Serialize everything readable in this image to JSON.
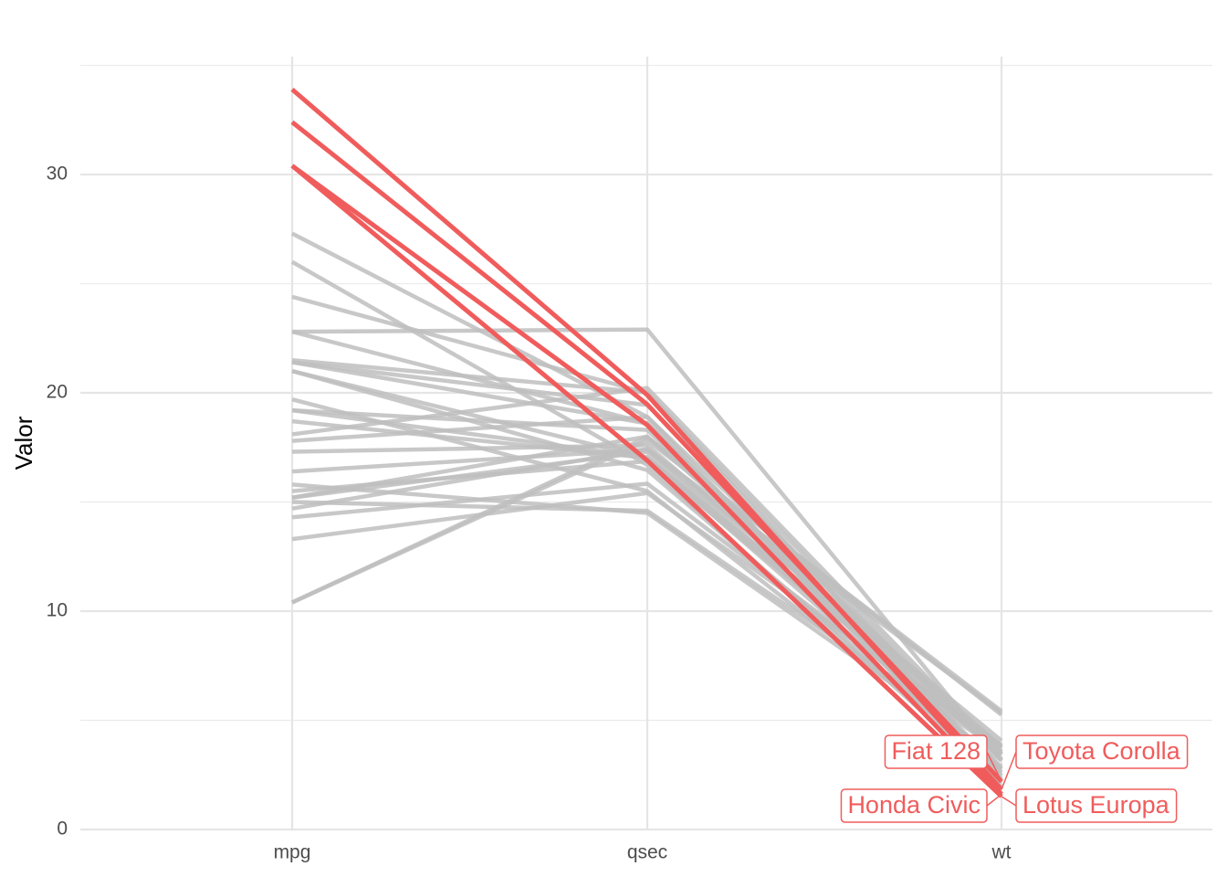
{
  "chart_data": {
    "type": "line",
    "y_label": "Valor",
    "categories": [
      "mpg",
      "qsec",
      "wt"
    ],
    "ylim": [
      0,
      35.4
    ],
    "yticks": [
      0,
      10,
      20,
      30
    ],
    "minor_yticks": [
      5,
      15,
      25,
      35
    ],
    "grid": true,
    "series": [
      {
        "color": "#bebebe",
        "values": [
          21.0,
          16.46,
          2.62
        ]
      },
      {
        "color": "#bebebe",
        "values": [
          21.0,
          17.02,
          2.875
        ]
      },
      {
        "color": "#bebebe",
        "values": [
          22.8,
          18.61,
          2.32
        ]
      },
      {
        "color": "#bebebe",
        "values": [
          21.4,
          19.44,
          3.215
        ]
      },
      {
        "color": "#bebebe",
        "values": [
          18.7,
          17.02,
          3.44
        ]
      },
      {
        "color": "#bebebe",
        "values": [
          18.1,
          20.22,
          3.46
        ]
      },
      {
        "color": "#bebebe",
        "values": [
          14.3,
          15.84,
          3.57
        ]
      },
      {
        "color": "#bebebe",
        "values": [
          24.4,
          20.0,
          3.19
        ]
      },
      {
        "color": "#bebebe",
        "values": [
          22.8,
          22.9,
          3.15
        ]
      },
      {
        "color": "#bebebe",
        "values": [
          19.2,
          18.3,
          3.44
        ]
      },
      {
        "color": "#bebebe",
        "values": [
          17.8,
          18.9,
          3.44
        ]
      },
      {
        "color": "#bebebe",
        "values": [
          16.4,
          17.4,
          4.07
        ]
      },
      {
        "color": "#bebebe",
        "values": [
          17.3,
          17.6,
          3.73
        ]
      },
      {
        "color": "#bebebe",
        "values": [
          15.2,
          18.0,
          3.78
        ]
      },
      {
        "color": "#bebebe",
        "values": [
          10.4,
          17.98,
          5.25
        ]
      },
      {
        "color": "#bebebe",
        "values": [
          10.4,
          17.82,
          5.424
        ]
      },
      {
        "color": "#bebebe",
        "values": [
          14.7,
          17.42,
          5.345
        ]
      },
      {
        "name": "Fiat 128",
        "color": "#f05c5c",
        "values": [
          32.4,
          19.47,
          2.2
        ]
      },
      {
        "name": "Honda Civic",
        "color": "#f05c5c",
        "values": [
          30.4,
          18.52,
          1.615
        ]
      },
      {
        "name": "Toyota Corolla",
        "color": "#f05c5c",
        "values": [
          33.9,
          19.9,
          1.835
        ]
      },
      {
        "color": "#bebebe",
        "values": [
          21.5,
          20.01,
          2.465
        ]
      },
      {
        "color": "#bebebe",
        "values": [
          15.5,
          16.87,
          3.52
        ]
      },
      {
        "color": "#bebebe",
        "values": [
          15.2,
          17.3,
          3.435
        ]
      },
      {
        "color": "#bebebe",
        "values": [
          13.3,
          15.41,
          3.84
        ]
      },
      {
        "color": "#bebebe",
        "values": [
          19.2,
          17.05,
          3.845
        ]
      },
      {
        "color": "#bebebe",
        "values": [
          27.3,
          18.9,
          1.935
        ]
      },
      {
        "color": "#bebebe",
        "values": [
          26.0,
          16.7,
          2.14
        ]
      },
      {
        "name": "Lotus Europa",
        "color": "#f05c5c",
        "values": [
          30.4,
          16.9,
          1.513
        ]
      },
      {
        "color": "#bebebe",
        "values": [
          15.8,
          14.5,
          3.17
        ]
      },
      {
        "color": "#bebebe",
        "values": [
          19.7,
          15.5,
          2.77
        ]
      },
      {
        "color": "#bebebe",
        "values": [
          15.0,
          14.6,
          3.57
        ]
      },
      {
        "color": "#bebebe",
        "values": [
          21.4,
          18.6,
          2.78
        ]
      }
    ]
  }
}
